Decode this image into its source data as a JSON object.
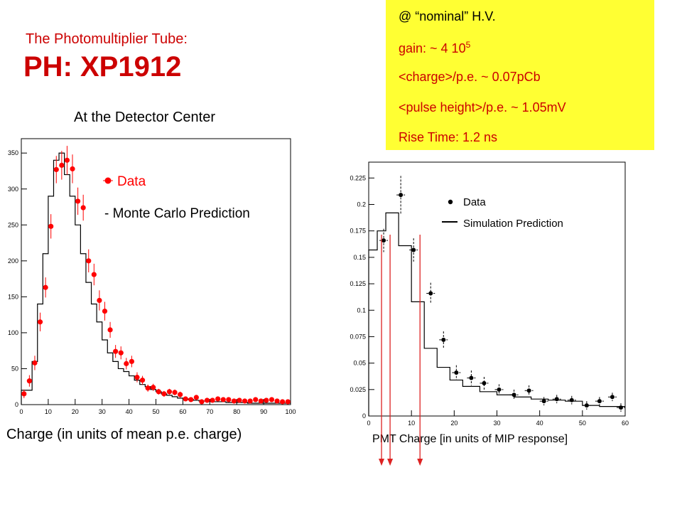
{
  "header": {
    "subtitle": "The Photomultiplier Tube:",
    "title": "PH: XP1912"
  },
  "info_box": {
    "lines": [
      "@ “nominal” H.V.",
      "gain: ~ 4 10",
      "<charge>/p.e. ~ 0.07pCb",
      "<pulse height>/p.e. ~ 1.05mV",
      "Rise Time:  1.2 ns"
    ],
    "gain_exponent": "5",
    "background": "#ffff33",
    "text_color": "#cc0000"
  },
  "chart_data": [
    {
      "type": "scatter",
      "title": "At the Detector Center",
      "xlabel": "Charge (in units of mean p.e. charge)",
      "ylabel": "",
      "xlim": [
        0,
        100
      ],
      "ylim": [
        0,
        370
      ],
      "xticks": [
        0,
        10,
        20,
        30,
        40,
        50,
        60,
        70,
        80,
        90,
        100
      ],
      "yticks": [
        0,
        50,
        100,
        150,
        200,
        250,
        300,
        350
      ],
      "grid": false,
      "legend": [
        "Data",
        "- Monte Carlo Prediction"
      ],
      "legend_position": "top-right",
      "colors": {
        "data": "#ff0000",
        "prediction": "#000000"
      },
      "series": [
        {
          "name": "Data",
          "x": [
            1,
            3,
            5,
            7,
            9,
            11,
            13,
            15,
            17,
            19,
            21,
            23,
            25,
            27,
            29,
            31,
            33,
            35,
            37,
            39,
            41,
            43,
            45,
            47,
            49,
            51,
            53,
            55,
            57,
            59,
            61,
            63,
            65,
            67,
            69,
            71,
            73,
            75,
            77,
            79,
            81,
            83,
            85,
            87,
            89,
            91,
            93,
            95,
            97,
            99
          ],
          "y": [
            15,
            33,
            58,
            115,
            163,
            248,
            327,
            333,
            340,
            328,
            283,
            274,
            200,
            181,
            145,
            130,
            104,
            74,
            72,
            57,
            60,
            38,
            34,
            23,
            24,
            18,
            15,
            18,
            17,
            14,
            8,
            7,
            10,
            4,
            6,
            6,
            8,
            7,
            7,
            5,
            6,
            5,
            5,
            7,
            5,
            6,
            7,
            5,
            4,
            4
          ],
          "err": [
            6,
            8,
            10,
            13,
            14,
            17,
            19,
            20,
            20,
            20,
            19,
            18,
            16,
            15,
            14,
            13,
            11,
            9,
            9,
            8,
            8,
            7,
            6,
            5,
            5,
            4,
            4,
            4,
            4,
            4,
            3,
            3,
            3,
            2,
            2,
            2,
            3,
            3,
            3,
            2,
            2,
            2,
            2,
            3,
            2,
            2,
            3,
            2,
            2,
            2
          ]
        },
        {
          "name": "Monte Carlo Prediction",
          "type": "step",
          "x": [
            4,
            6,
            8,
            10,
            12,
            14,
            16,
            18,
            20,
            22,
            24,
            26,
            28,
            30,
            32,
            34,
            36,
            38,
            40,
            42,
            44,
            46,
            48,
            50,
            52,
            54,
            56,
            58,
            60,
            62,
            64,
            66,
            68,
            70,
            72,
            74,
            76,
            78,
            80,
            82,
            84,
            86,
            88,
            90,
            92,
            94,
            96,
            98,
            100
          ],
          "y": [
            20,
            60,
            140,
            210,
            290,
            340,
            350,
            320,
            290,
            250,
            210,
            170,
            140,
            115,
            90,
            72,
            60,
            50,
            46,
            40,
            34,
            28,
            25,
            21,
            18,
            15,
            13,
            11,
            9,
            8,
            7,
            6,
            5,
            5,
            4,
            4,
            4,
            3,
            3,
            3,
            3,
            2,
            2,
            2,
            2,
            2,
            2,
            2,
            2
          ]
        }
      ]
    },
    {
      "type": "scatter",
      "title": "",
      "xlabel": "PMT Charge     [in units of MIP response]",
      "ylabel": "",
      "xlim": [
        0,
        60
      ],
      "ylim": [
        0,
        0.24
      ],
      "xticks": [
        0,
        10,
        20,
        30,
        40,
        50,
        60
      ],
      "yticks": [
        0,
        0.025,
        0.05,
        0.075,
        0.1,
        0.125,
        0.15,
        0.175,
        0.2,
        0.225
      ],
      "grid": false,
      "legend": [
        "Data",
        "Simulation Prediction"
      ],
      "legend_position": "top-right",
      "colors": {
        "data": "#000000",
        "prediction": "#000000",
        "arrows": "#dd2222"
      },
      "series": [
        {
          "name": "Data",
          "x": [
            3.5,
            7.5,
            10.5,
            14.5,
            17.5,
            20.5,
            24,
            27,
            30.5,
            34,
            37.5,
            41,
            44,
            47.5,
            51,
            54,
            57,
            59
          ],
          "y": [
            0.166,
            0.209,
            0.157,
            0.116,
            0.072,
            0.041,
            0.036,
            0.031,
            0.025,
            0.02,
            0.024,
            0.014,
            0.016,
            0.015,
            0.01,
            0.014,
            0.018,
            0.008
          ],
          "err": [
            0.011,
            0.018,
            0.011,
            0.01,
            0.008,
            0.007,
            0.007,
            0.006,
            0.005,
            0.005,
            0.005,
            0.004,
            0.004,
            0.004,
            0.004,
            0.004,
            0.004,
            0.004
          ]
        },
        {
          "name": "Simulation Prediction",
          "type": "step",
          "x": [
            2,
            4,
            7,
            10,
            13,
            16,
            19,
            22,
            26,
            30,
            34,
            38,
            42,
            46,
            50,
            54,
            58,
            60
          ],
          "y": [
            0.157,
            0.175,
            0.192,
            0.161,
            0.108,
            0.064,
            0.046,
            0.034,
            0.028,
            0.023,
            0.02,
            0.018,
            0.016,
            0.015,
            0.014,
            0.01,
            0.009,
            0.009
          ]
        }
      ],
      "markers_x": [
        3,
        5,
        12
      ]
    }
  ]
}
